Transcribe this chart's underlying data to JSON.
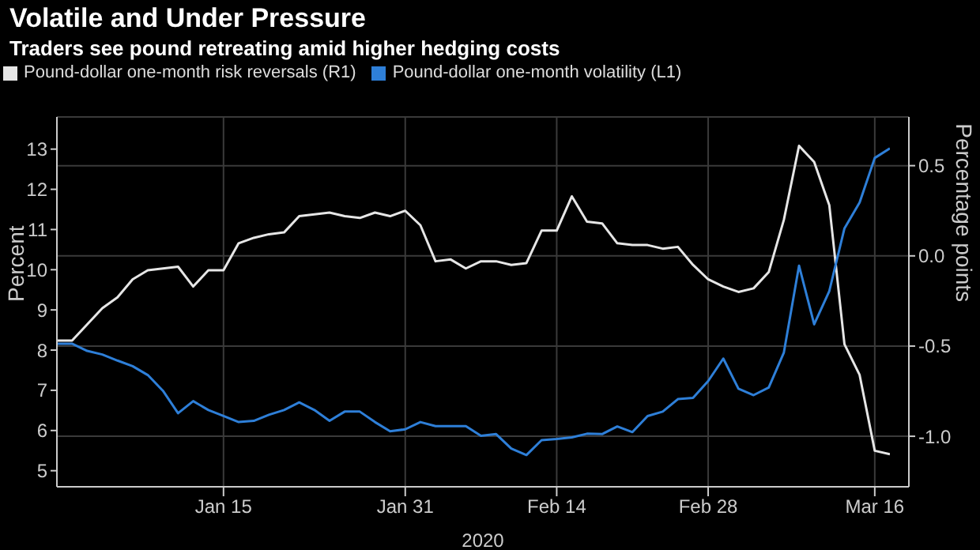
{
  "chart_data": {
    "type": "line",
    "title": "Volatile and Under Pressure",
    "subtitle": "Traders see pound retreating amid higher hedging costs",
    "xlabel": "2020",
    "ylabel": "Percent",
    "y2label": "Percentage points",
    "categories": [
      null,
      null,
      null,
      null,
      null,
      null,
      null,
      null,
      null,
      null,
      null,
      "Jan 15",
      null,
      null,
      null,
      null,
      null,
      null,
      null,
      null,
      null,
      null,
      null,
      "Jan 31",
      null,
      null,
      null,
      null,
      null,
      null,
      null,
      null,
      null,
      "Feb 14",
      null,
      null,
      null,
      null,
      null,
      null,
      null,
      null,
      null,
      "Feb 28",
      null,
      null,
      null,
      null,
      null,
      null,
      null,
      null,
      null,
      null,
      "Mar 16",
      null
    ],
    "series": [
      {
        "name": "Pound-dollar one-month risk reversals (R1)",
        "color": "#e6e6e6",
        "axis": "y2",
        "values": [
          -0.47,
          -0.47,
          -0.38,
          -0.29,
          -0.23,
          -0.13,
          -0.08,
          -0.07,
          -0.06,
          -0.17,
          -0.08,
          -0.08,
          0.07,
          0.1,
          0.12,
          0.13,
          0.22,
          0.23,
          0.24,
          0.22,
          0.21,
          0.24,
          0.22,
          0.25,
          0.17,
          -0.03,
          -0.02,
          -0.07,
          -0.03,
          -0.03,
          -0.05,
          -0.04,
          0.14,
          0.14,
          0.33,
          0.19,
          0.18,
          0.07,
          0.06,
          0.06,
          0.04,
          0.05,
          -0.05,
          -0.13,
          -0.17,
          -0.2,
          -0.18,
          -0.09,
          0.2,
          0.61,
          0.52,
          0.28,
          -0.49,
          -0.66,
          -1.08,
          -1.1
        ]
      },
      {
        "name": "Pound-dollar one-month volatility (L1)",
        "color": "#2e7fd8",
        "values": [
          8.16,
          8.16,
          7.98,
          7.89,
          7.74,
          7.6,
          7.38,
          6.99,
          6.43,
          6.73,
          6.51,
          6.36,
          6.21,
          6.24,
          6.39,
          6.51,
          6.7,
          6.51,
          6.24,
          6.47,
          6.47,
          6.21,
          5.98,
          6.03,
          6.21,
          6.11,
          6.11,
          6.11,
          5.87,
          5.91,
          5.55,
          5.39,
          5.76,
          5.79,
          5.83,
          5.92,
          5.91,
          6.1,
          5.96,
          6.36,
          6.47,
          6.78,
          6.81,
          7.23,
          7.79,
          7.04,
          6.88,
          7.07,
          7.94,
          10.1,
          8.64,
          9.47,
          11.03,
          11.67,
          12.78,
          13.02
        ]
      }
    ],
    "ylim": [
      4.6,
      13.8
    ],
    "yticks": [
      5,
      6,
      7,
      8,
      9,
      10,
      11,
      12,
      13
    ],
    "y2lim": [
      -1.28,
      0.77
    ],
    "y2ticks": [
      {
        "value": -1,
        "label": "-1.0"
      },
      {
        "value": -0.5,
        "label": "-0.5"
      },
      {
        "value": 0,
        "label": "0.0"
      },
      {
        "value": 0.5,
        "label": "0.5"
      }
    ],
    "grid": true,
    "legend": "top left",
    "marker": "none",
    "line_style": "solid"
  }
}
